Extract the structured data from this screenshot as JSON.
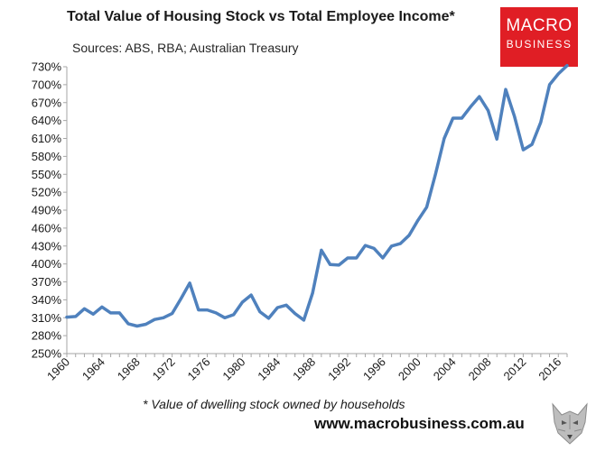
{
  "header": {
    "title": "Total Value of Housing Stock vs Total Employee Income*",
    "subtitle": "Sources: ABS, RBA; Australian Treasury"
  },
  "logo": {
    "line1": "MACRO",
    "line2": "BUSINESS"
  },
  "footnote": "* Value of dwelling stock owned by households",
  "website": "www.macrobusiness.com.au",
  "colors": {
    "line": "#4f81bd",
    "logo_bg": "#e01e25",
    "axis": "#a6a6a6"
  },
  "chart_data": {
    "type": "line",
    "title": "Total Value of Housing Stock vs Total Employee Income*",
    "xlabel": "",
    "ylabel": "",
    "x_ticks": [
      "1960",
      "1964",
      "1968",
      "1972",
      "1976",
      "1980",
      "1984",
      "1988",
      "1992",
      "1996",
      "2000",
      "2004",
      "2008",
      "2012",
      "2016"
    ],
    "y_ticks": [
      "250%",
      "280%",
      "310%",
      "340%",
      "370%",
      "400%",
      "430%",
      "460%",
      "490%",
      "520%",
      "550%",
      "580%",
      "610%",
      "640%",
      "670%",
      "700%",
      "730%"
    ],
    "ylim": [
      250,
      730
    ],
    "xlim": [
      1960,
      2017
    ],
    "grid": false,
    "series": [
      {
        "name": "Housing stock / employee income",
        "x": [
          1960,
          1961,
          1962,
          1963,
          1964,
          1965,
          1966,
          1967,
          1968,
          1969,
          1970,
          1971,
          1972,
          1973,
          1974,
          1975,
          1976,
          1977,
          1978,
          1979,
          1980,
          1981,
          1982,
          1983,
          1984,
          1985,
          1986,
          1987,
          1988,
          1989,
          1990,
          1991,
          1992,
          1993,
          1994,
          1995,
          1996,
          1997,
          1998,
          1999,
          2000,
          2001,
          2002,
          2003,
          2004,
          2005,
          2006,
          2007,
          2008,
          2009,
          2010,
          2011,
          2012,
          2013,
          2014,
          2015,
          2016,
          2017
        ],
        "values": [
          311,
          312,
          325,
          316,
          328,
          318,
          318,
          300,
          296,
          299,
          307,
          310,
          317,
          342,
          368,
          323,
          323,
          318,
          310,
          315,
          336,
          348,
          320,
          309,
          327,
          331,
          317,
          306,
          351,
          423,
          399,
          398,
          410,
          410,
          431,
          426,
          410,
          430,
          434,
          448,
          473,
          495,
          550,
          610,
          644,
          644,
          663,
          680,
          657,
          609,
          692,
          647,
          591,
          600,
          637,
          700,
          718,
          732
        ]
      }
    ]
  }
}
